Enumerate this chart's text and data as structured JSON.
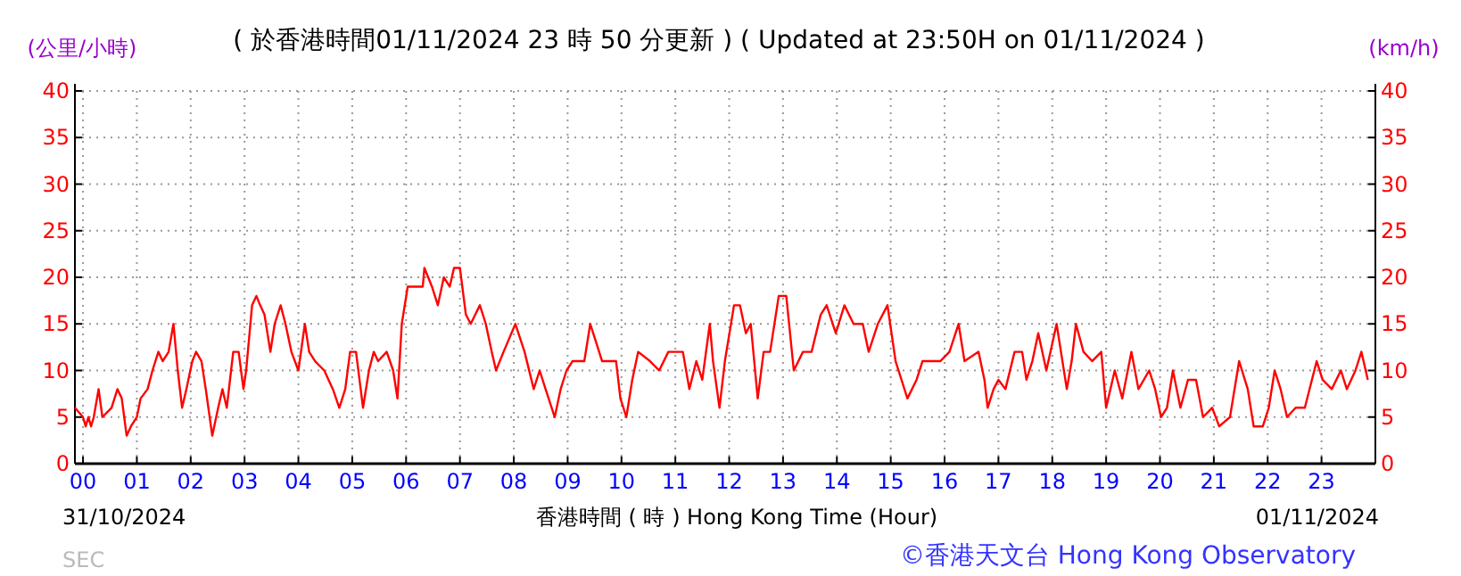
{
  "chart_data": {
    "type": "line",
    "title": "( 於香港時間01/11/2024 23 時 50 分更新 ) ( Updated at 23:50H on 01/11/2024 )",
    "xlabel": "香港時間 ( 時 )  Hong Kong Time (Hour)",
    "ylabel": "(公里/小時)",
    "y2label": "(km/h)",
    "annotations": [
      "31/10/2024",
      "01/11/2024",
      "©香港天文台 Hong Kong Observatory",
      "SEC"
    ],
    "xlim": [
      -0.15,
      24
    ],
    "xticks": [
      {
        "value": 0,
        "label": "00"
      },
      {
        "value": 1,
        "label": "01"
      },
      {
        "value": 2,
        "label": "02"
      },
      {
        "value": 3,
        "label": "03"
      },
      {
        "value": 4,
        "label": "04"
      },
      {
        "value": 5,
        "label": "05"
      },
      {
        "value": 6,
        "label": "06"
      },
      {
        "value": 7,
        "label": "07"
      },
      {
        "value": 8,
        "label": "08"
      },
      {
        "value": 9,
        "label": "09"
      },
      10,
      11,
      12,
      13,
      14,
      15,
      16,
      17,
      18,
      19,
      20,
      21,
      22,
      23
    ],
    "ylim": [
      0,
      40
    ],
    "yticks": [
      0,
      5,
      10,
      15,
      20,
      25,
      30,
      35,
      40
    ],
    "y2lim": [
      0,
      40
    ],
    "y2ticks": [
      0,
      5,
      10,
      15,
      20,
      25,
      30,
      35,
      40
    ],
    "grid": true,
    "marker": "none",
    "line_style": "solid",
    "series": [
      {
        "color": "#ff0000",
        "x": [
          -0.15,
          0.0,
          0.05,
          0.1,
          0.15,
          0.2,
          0.29,
          0.36,
          0.53,
          0.64,
          0.72,
          0.81,
          0.89,
          1.0,
          1.07,
          1.2,
          1.29,
          1.4,
          1.48,
          1.59,
          1.68,
          1.76,
          1.84,
          1.92,
          2.03,
          2.1,
          2.2,
          2.28,
          2.4,
          2.51,
          2.59,
          2.67,
          2.79,
          2.89,
          2.98,
          3.03,
          3.14,
          3.22,
          3.29,
          3.37,
          3.48,
          3.56,
          3.67,
          3.76,
          3.87,
          4.0,
          4.12,
          4.2,
          4.31,
          4.48,
          4.64,
          4.76,
          4.87,
          4.96,
          5.07,
          5.2,
          5.31,
          5.4,
          5.48,
          5.64,
          5.76,
          5.84,
          5.92,
          6.03,
          6.31,
          6.34,
          6.48,
          6.59,
          6.7,
          6.81,
          6.89,
          7.0,
          7.11,
          7.2,
          7.37,
          7.48,
          7.59,
          7.67,
          7.81,
          8.03,
          8.2,
          8.37,
          8.48,
          8.59,
          8.76,
          8.87,
          8.98,
          9.09,
          9.31,
          9.42,
          9.53,
          9.64,
          9.9,
          9.98,
          10.09,
          10.2,
          10.31,
          10.53,
          10.7,
          10.87,
          11.14,
          11.26,
          11.39,
          11.5,
          11.64,
          11.7,
          11.82,
          11.92,
          12.09,
          12.2,
          12.31,
          12.4,
          12.53,
          12.64,
          12.76,
          12.92,
          13.06,
          13.2,
          13.37,
          13.53,
          13.7,
          13.81,
          13.98,
          14.14,
          14.31,
          14.48,
          14.59,
          14.76,
          14.94,
          15.09,
          15.31,
          15.48,
          15.59,
          15.92,
          16.09,
          16.26,
          16.37,
          16.63,
          16.74,
          16.8,
          16.91,
          17.0,
          17.13,
          17.3,
          17.44,
          17.52,
          17.63,
          17.74,
          17.89,
          18.08,
          18.27,
          18.36,
          18.44,
          18.58,
          18.74,
          18.91,
          19.0,
          19.16,
          19.3,
          19.47,
          19.6,
          19.8,
          19.91,
          20.02,
          20.13,
          20.24,
          20.38,
          20.52,
          20.67,
          20.8,
          20.97,
          21.1,
          21.3,
          21.47,
          21.63,
          21.74,
          21.91,
          22.02,
          22.13,
          22.24,
          22.36,
          22.52,
          22.69,
          22.91,
          23.02,
          23.19,
          23.36,
          23.47,
          23.63,
          23.74,
          23.86
        ],
        "values": [
          6,
          5,
          4,
          5,
          4,
          5,
          8,
          5,
          6,
          8,
          7,
          3,
          4,
          5,
          7,
          8,
          10,
          12,
          11,
          12,
          15,
          10,
          6,
          8,
          11,
          12,
          11,
          8,
          3,
          6,
          8,
          6,
          12,
          12,
          8,
          10,
          17,
          18,
          17,
          16,
          12,
          15,
          17,
          15,
          12,
          10,
          15,
          12,
          11,
          10,
          8,
          6,
          8,
          12,
          12,
          6,
          10,
          12,
          11,
          12,
          10,
          7,
          15,
          19,
          19,
          21,
          19,
          17,
          20,
          19,
          21,
          21,
          16,
          15,
          17,
          15,
          12,
          10,
          12,
          15,
          12,
          8,
          10,
          8,
          5,
          8,
          10,
          11,
          11,
          15,
          13,
          11,
          11,
          7,
          5,
          9,
          12,
          11,
          10,
          12,
          12,
          8,
          11,
          9,
          15,
          11,
          6,
          11,
          17,
          17,
          14,
          15,
          7,
          12,
          12,
          18,
          18,
          10,
          12,
          12,
          16,
          17,
          14,
          17,
          15,
          15,
          12,
          15,
          17,
          11,
          7,
          9,
          11,
          11,
          12,
          15,
          11,
          12,
          9,
          6,
          8,
          9,
          8,
          12,
          12,
          9,
          11,
          14,
          10,
          15,
          8,
          11,
          15,
          12,
          11,
          12,
          6,
          10,
          7,
          12,
          8,
          10,
          8,
          5,
          6,
          10,
          6,
          9,
          9,
          5,
          6,
          4,
          5,
          11,
          8,
          4,
          4,
          6,
          10,
          8,
          5,
          6,
          6,
          11,
          9,
          8,
          10,
          8,
          10,
          12,
          9
        ]
      }
    ]
  }
}
